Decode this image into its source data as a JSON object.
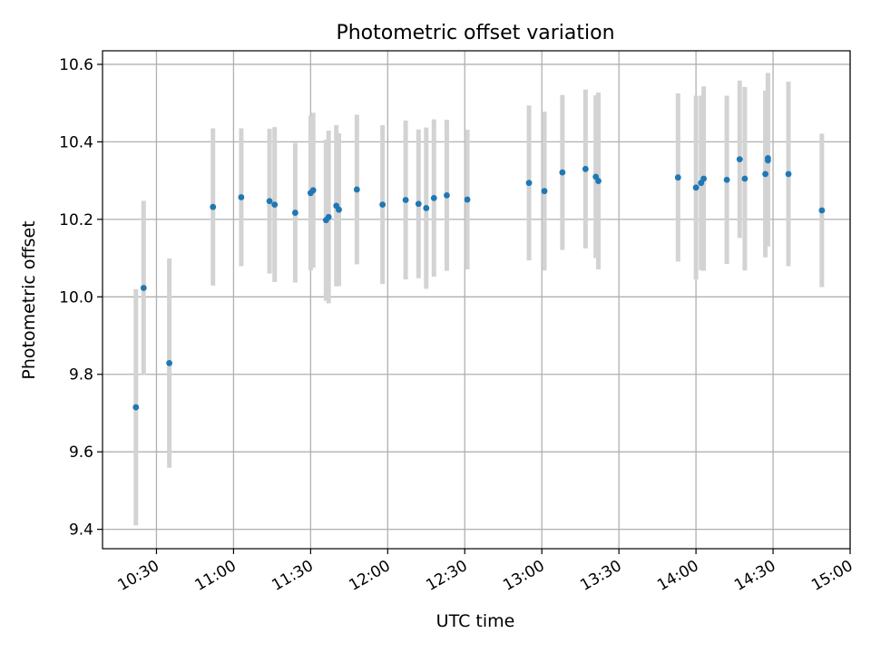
{
  "chart_data": {
    "type": "scatter",
    "title": "Photometric offset variation",
    "xlabel": "UTC time",
    "ylabel": "Photometric offset",
    "x_range": [
      "10:09",
      "15:00"
    ],
    "ylim": [
      9.35,
      10.635
    ],
    "x_ticks": [
      "10:30",
      "11:00",
      "11:30",
      "12:00",
      "12:30",
      "13:00",
      "13:30",
      "14:00",
      "14:30",
      "15:00"
    ],
    "y_ticks": [
      9.4,
      9.6,
      9.8,
      10.0,
      10.2,
      10.4,
      10.6
    ],
    "grid": true,
    "legend": "none",
    "colors": {
      "marker": "#1f77b4",
      "errorbar": "#d3d3d3",
      "grid": "#b0b0b0"
    },
    "series": [
      {
        "points": [
          {
            "t": "10:22",
            "y": 9.715,
            "err": 0.305
          },
          {
            "t": "10:25",
            "y": 10.023,
            "err": 0.225
          },
          {
            "t": "10:35",
            "y": 9.829,
            "err": 0.27
          },
          {
            "t": "10:52",
            "y": 10.232,
            "err": 0.203
          },
          {
            "t": "11:03",
            "y": 10.257,
            "err": 0.178
          },
          {
            "t": "11:14",
            "y": 10.247,
            "err": 0.187
          },
          {
            "t": "11:16",
            "y": 10.238,
            "err": 0.2
          },
          {
            "t": "11:24",
            "y": 10.217,
            "err": 0.18
          },
          {
            "t": "11:30",
            "y": 10.268,
            "err": 0.2
          },
          {
            "t": "11:31",
            "y": 10.275,
            "err": 0.2
          },
          {
            "t": "11:36",
            "y": 10.198,
            "err": 0.208
          },
          {
            "t": "11:37",
            "y": 10.206,
            "err": 0.223
          },
          {
            "t": "11:40",
            "y": 10.235,
            "err": 0.208
          },
          {
            "t": "11:41",
            "y": 10.225,
            "err": 0.197
          },
          {
            "t": "11:48",
            "y": 10.277,
            "err": 0.193
          },
          {
            "t": "11:58",
            "y": 10.238,
            "err": 0.205
          },
          {
            "t": "12:07",
            "y": 10.25,
            "err": 0.205
          },
          {
            "t": "12:12",
            "y": 10.24,
            "err": 0.192
          },
          {
            "t": "12:15",
            "y": 10.229,
            "err": 0.208
          },
          {
            "t": "12:18",
            "y": 10.255,
            "err": 0.203
          },
          {
            "t": "12:23",
            "y": 10.262,
            "err": 0.195
          },
          {
            "t": "12:31",
            "y": 10.251,
            "err": 0.18
          },
          {
            "t": "12:55",
            "y": 10.294,
            "err": 0.2
          },
          {
            "t": "13:01",
            "y": 10.273,
            "err": 0.205
          },
          {
            "t": "13:08",
            "y": 10.321,
            "err": 0.2
          },
          {
            "t": "13:17",
            "y": 10.33,
            "err": 0.205
          },
          {
            "t": "13:21",
            "y": 10.31,
            "err": 0.21
          },
          {
            "t": "13:22",
            "y": 10.299,
            "err": 0.228
          },
          {
            "t": "13:53",
            "y": 10.308,
            "err": 0.217
          },
          {
            "t": "14:00",
            "y": 10.282,
            "err": 0.237
          },
          {
            "t": "14:02",
            "y": 10.294,
            "err": 0.225
          },
          {
            "t": "14:03",
            "y": 10.305,
            "err": 0.238
          },
          {
            "t": "14:12",
            "y": 10.302,
            "err": 0.217
          },
          {
            "t": "14:17",
            "y": 10.355,
            "err": 0.203
          },
          {
            "t": "14:19",
            "y": 10.305,
            "err": 0.237
          },
          {
            "t": "14:27",
            "y": 10.317,
            "err": 0.215
          },
          {
            "t": "14:28",
            "y": 10.352,
            "err": 0.222
          },
          {
            "t": "14:28",
            "y": 10.358,
            "err": 0.22
          },
          {
            "t": "14:36",
            "y": 10.317,
            "err": 0.238
          },
          {
            "t": "14:49",
            "y": 10.223,
            "err": 0.198
          }
        ]
      }
    ]
  }
}
